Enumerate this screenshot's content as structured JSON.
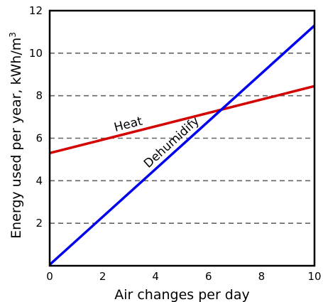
{
  "chart_data": {
    "type": "line",
    "title": "",
    "xlabel": "Air changes per day",
    "ylabel_main": "Energy used per year,  kWh/m",
    "ylabel_sup": "3",
    "xlim": [
      0,
      10
    ],
    "ylim": [
      0,
      12
    ],
    "x_ticks": [
      "0",
      "2",
      "4",
      "6",
      "8",
      "10"
    ],
    "y_ticks": [
      "2",
      "4",
      "6",
      "8",
      "10",
      "12"
    ],
    "grid": "dashed horizontal",
    "series": [
      {
        "name": "Heat",
        "color": "#d40000",
        "x": [
          0,
          10
        ],
        "y": [
          5.3,
          8.45
        ]
      },
      {
        "name": "Dehumidify",
        "color": "#0000ee",
        "x": [
          0,
          10
        ],
        "y": [
          0.05,
          11.3
        ]
      }
    ]
  }
}
